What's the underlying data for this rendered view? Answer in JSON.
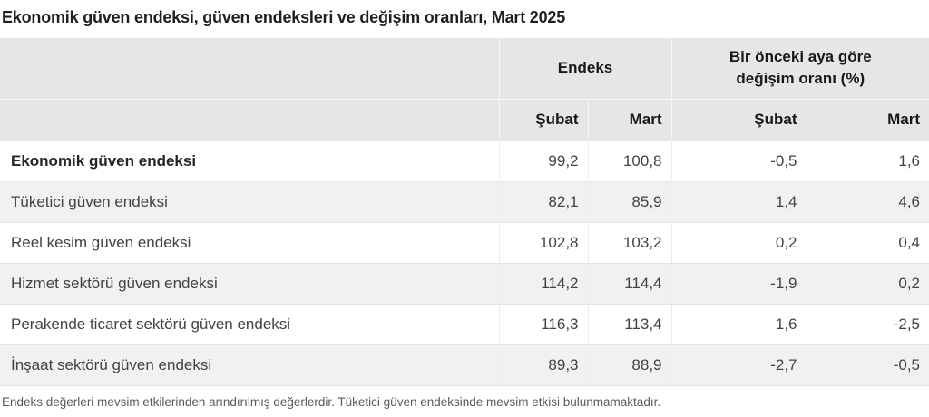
{
  "title": "Ekonomik güven endeksi, güven endeksleri ve değişim oranları, Mart 2025",
  "table": {
    "col_groups": [
      {
        "label": "Endeks"
      },
      {
        "label": "Bir önceki aya göre\ndeğişim oranı (%)"
      }
    ],
    "sub_headers": [
      "Şubat",
      "Mart",
      "Şubat",
      "Mart"
    ],
    "rows": [
      {
        "label": "Ekonomik güven endeksi",
        "values": [
          "99,2",
          "100,8",
          "-0,5",
          "1,6"
        ]
      },
      {
        "label": "Tüketici güven endeksi",
        "values": [
          "82,1",
          "85,9",
          "1,4",
          "4,6"
        ]
      },
      {
        "label": "Reel kesim güven endeksi",
        "values": [
          "102,8",
          "103,2",
          "0,2",
          "0,4"
        ]
      },
      {
        "label": "Hizmet sektörü güven endeksi",
        "values": [
          "114,2",
          "114,4",
          "-1,9",
          "0,2"
        ]
      },
      {
        "label": "Perakende ticaret sektörü güven endeksi",
        "values": [
          "116,3",
          "113,4",
          "1,6",
          "-2,5"
        ]
      },
      {
        "label": "İnşaat sektörü güven endeksi",
        "values": [
          "89,3",
          "88,9",
          "-2,7",
          "-0,5"
        ]
      }
    ]
  },
  "footnote": "Endeks değerleri mevsim etkilerinden arındırılmış değerlerdir. Tüketici güven endeksinde mevsim etkisi bulunmamaktadır.",
  "colors": {
    "header_bg": "#e6e6e6",
    "header_divider": "#f5f5f5",
    "stripe_bg": "#f0f1f1",
    "row_border": "#e4e4e4",
    "title_text": "#1f1f1f",
    "header_text": "#191919",
    "body_text": "#404245",
    "footnote_text": "#5a5a5a"
  },
  "chart_data": {
    "type": "table",
    "title": "Ekonomik güven endeksi, güven endeksleri ve değişim oranları, Mart 2025",
    "column_groups": [
      {
        "label": "Endeks",
        "columns": [
          "Şubat",
          "Mart"
        ]
      },
      {
        "label": "Bir önceki aya göre değişim oranı (%)",
        "columns": [
          "Şubat",
          "Mart"
        ]
      }
    ],
    "rows": [
      {
        "label": "Ekonomik güven endeksi",
        "endeks_subat": 99.2,
        "endeks_mart": 100.8,
        "degisim_subat": -0.5,
        "degisim_mart": 1.6
      },
      {
        "label": "Tüketici güven endeksi",
        "endeks_subat": 82.1,
        "endeks_mart": 85.9,
        "degisim_subat": 1.4,
        "degisim_mart": 4.6
      },
      {
        "label": "Reel kesim güven endeksi",
        "endeks_subat": 102.8,
        "endeks_mart": 103.2,
        "degisim_subat": 0.2,
        "degisim_mart": 0.4
      },
      {
        "label": "Hizmet sektörü güven endeksi",
        "endeks_subat": 114.2,
        "endeks_mart": 114.4,
        "degisim_subat": -1.9,
        "degisim_mart": 0.2
      },
      {
        "label": "Perakende ticaret sektörü güven endeksi",
        "endeks_subat": 116.3,
        "endeks_mart": 113.4,
        "degisim_subat": 1.6,
        "degisim_mart": -2.5
      },
      {
        "label": "İnşaat sektörü güven endeksi",
        "endeks_subat": 89.3,
        "endeks_mart": 88.9,
        "degisim_subat": -2.7,
        "degisim_mart": -0.5
      }
    ],
    "decimal_separator": ",",
    "footnote": "Endeks değerleri mevsim etkilerinden arındırılmış değerlerdir. Tüketici güven endeksinde mevsim etkisi bulunmamaktadır."
  }
}
